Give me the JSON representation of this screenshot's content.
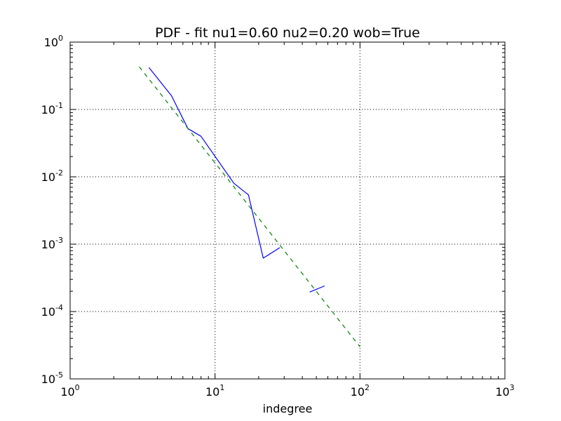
{
  "chart_data": {
    "type": "line",
    "title": "PDF - fit nu1=0.60 nu2=0.20 wob=True",
    "xlabel": "indegree",
    "ylabel": "",
    "xscale": "log",
    "yscale": "log",
    "xlim": [
      1,
      1000
    ],
    "ylim": [
      1e-05,
      1
    ],
    "grid": true,
    "x_ticks": [
      {
        "value": 1,
        "base": "10",
        "exp": "0"
      },
      {
        "value": 10,
        "base": "10",
        "exp": "1"
      },
      {
        "value": 100,
        "base": "10",
        "exp": "2"
      },
      {
        "value": 1000,
        "base": "10",
        "exp": "3"
      }
    ],
    "y_ticks": [
      {
        "value": 1e-05,
        "base": "10",
        "exp": "-5"
      },
      {
        "value": 0.0001,
        "base": "10",
        "exp": "-4"
      },
      {
        "value": 0.001,
        "base": "10",
        "exp": "-3"
      },
      {
        "value": 0.01,
        "base": "10",
        "exp": "-2"
      },
      {
        "value": 0.1,
        "base": "10",
        "exp": "-1"
      },
      {
        "value": 1,
        "base": "10",
        "exp": "0"
      }
    ],
    "series": [
      {
        "color": "#0000ff",
        "style": "solid",
        "segments": [
          [
            [
              3.5,
              0.42
            ],
            [
              5.0,
              0.16
            ],
            [
              6.5,
              0.052
            ],
            [
              8.0,
              0.04
            ],
            [
              13.5,
              0.008
            ],
            [
              17.0,
              0.0054
            ],
            [
              21.5,
              0.00062
            ],
            [
              28.0,
              0.00089
            ]
          ],
          [
            [
              45.0,
              0.000195
            ],
            [
              57.0,
              0.00024
            ]
          ]
        ]
      },
      {
        "color": "#008000",
        "style": "dashed",
        "segments": [
          [
            [
              3.0,
              0.43
            ],
            [
              100.0,
              3e-05
            ]
          ]
        ]
      }
    ]
  }
}
